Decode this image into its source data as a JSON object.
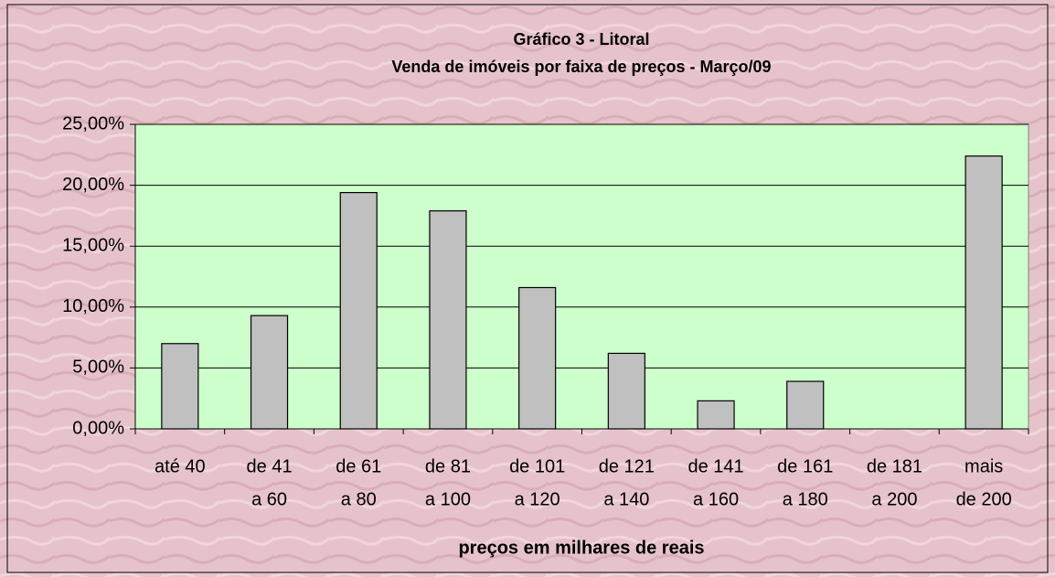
{
  "chart_data": {
    "type": "bar",
    "title": "Gráfico 3 - Litoral",
    "subtitle": "Venda de imóveis por faixa de preços - Março/09",
    "x_label": "preços em milhares de reais",
    "categories": [
      [
        "até 40"
      ],
      [
        "de 41",
        "a 60"
      ],
      [
        "de 61",
        "a 80"
      ],
      [
        "de 81",
        "a 100"
      ],
      [
        "de 101",
        "a 120"
      ],
      [
        "de 121",
        "a 140"
      ],
      [
        "de 141",
        "a 160"
      ],
      [
        "de 161",
        "a 180"
      ],
      [
        "de 181",
        "a 200"
      ],
      [
        "mais",
        "de 200"
      ]
    ],
    "values": [
      7.0,
      9.3,
      19.4,
      17.9,
      11.6,
      6.2,
      2.3,
      3.9,
      0,
      22.4
    ],
    "color": "#c0c0c0",
    "ylim": [
      0,
      25
    ],
    "yticks": [
      {
        "value": 0,
        "label": "0,00%"
      },
      {
        "value": 5,
        "label": "5,00%"
      },
      {
        "value": 10,
        "label": "10,00%"
      },
      {
        "value": 15,
        "label": "15,00%"
      },
      {
        "value": 20,
        "label": "20,00%"
      },
      {
        "value": 25,
        "label": "25,00%"
      }
    ],
    "grid": true
  }
}
